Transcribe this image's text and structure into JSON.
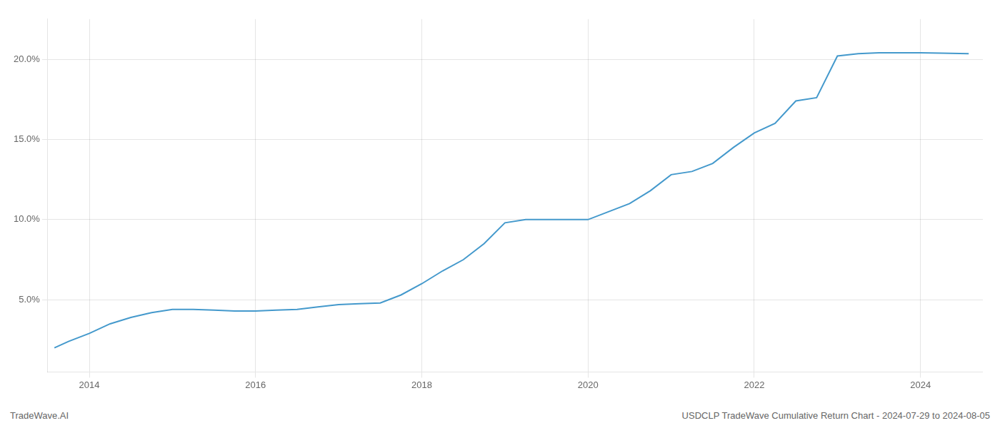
{
  "chart_data": {
    "type": "line",
    "x": [
      2013.58,
      2013.75,
      2014.0,
      2014.25,
      2014.5,
      2014.75,
      2015.0,
      2015.25,
      2015.5,
      2015.75,
      2016.0,
      2016.25,
      2016.5,
      2016.75,
      2017.0,
      2017.25,
      2017.5,
      2017.75,
      2018.0,
      2018.25,
      2018.5,
      2018.75,
      2019.0,
      2019.25,
      2019.5,
      2019.75,
      2020.0,
      2020.25,
      2020.5,
      2020.75,
      2021.0,
      2021.25,
      2021.5,
      2021.75,
      2022.0,
      2022.25,
      2022.5,
      2022.75,
      2023.0,
      2023.25,
      2023.5,
      2023.75,
      2024.0,
      2024.25,
      2024.58
    ],
    "values": [
      2.0,
      2.4,
      2.9,
      3.5,
      3.9,
      4.2,
      4.4,
      4.4,
      4.35,
      4.3,
      4.3,
      4.35,
      4.4,
      4.55,
      4.7,
      4.75,
      4.8,
      5.3,
      6.0,
      6.8,
      7.5,
      8.5,
      9.8,
      10.0,
      10.0,
      10.0,
      10.0,
      10.5,
      11.0,
      11.8,
      12.8,
      13.0,
      13.5,
      14.5,
      15.4,
      16.0,
      17.4,
      17.6,
      20.2,
      20.35,
      20.4,
      20.4,
      20.4,
      20.38,
      20.35
    ],
    "color": "#4499cc",
    "xlim": [
      2013.5,
      2024.75
    ],
    "ylim": [
      0.5,
      22.5
    ],
    "xticks": [
      2014,
      2016,
      2018,
      2020,
      2022,
      2024
    ],
    "yticks": [
      {
        "value": 5.0,
        "label": "5.0%"
      },
      {
        "value": 10.0,
        "label": "10.0%"
      },
      {
        "value": 15.0,
        "label": "15.0%"
      },
      {
        "value": 20.0,
        "label": "20.0%"
      }
    ],
    "grid": true,
    "annotations": [
      "TradeWave.AI",
      "USDCLP TradeWave Cumulative Return Chart - 2024-07-29 to 2024-08-05"
    ]
  }
}
